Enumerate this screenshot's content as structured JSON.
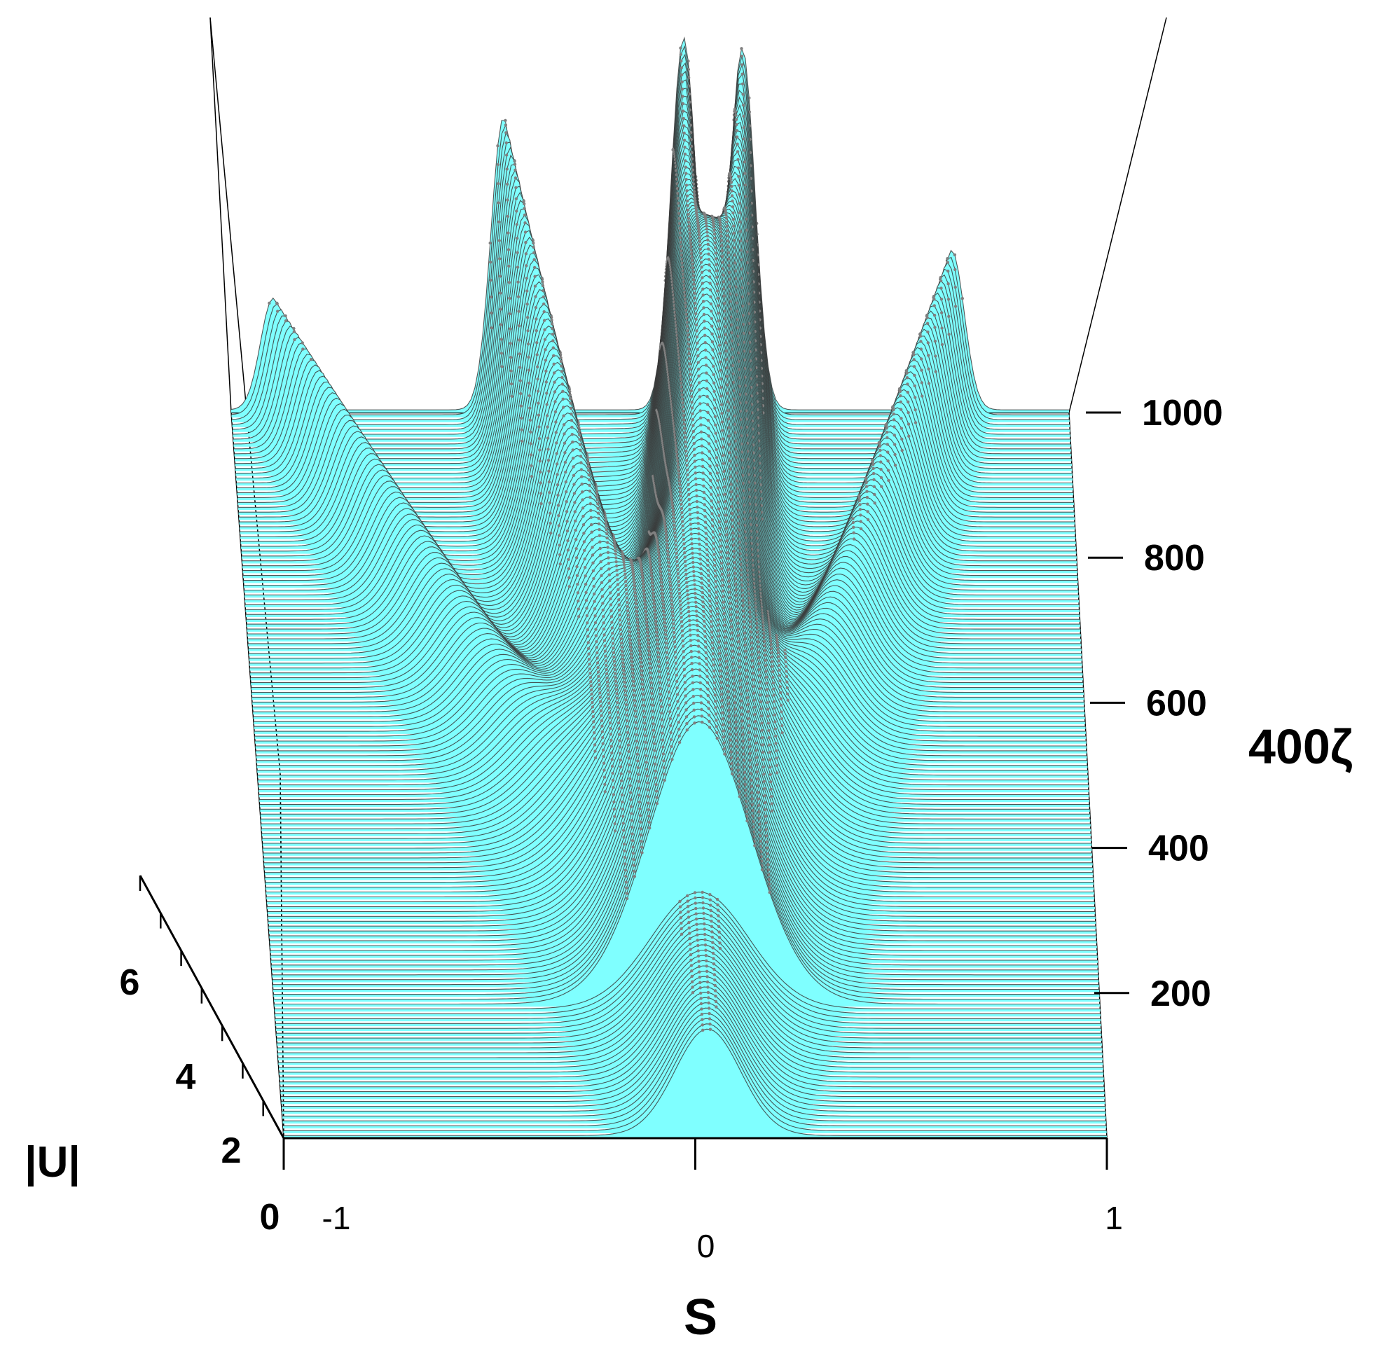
{
  "chart_data": {
    "type": "3d-waterfall",
    "xlabel": "S",
    "ylabel": "400ζ",
    "zlabel": "|U|",
    "x_ticks": [
      "-1",
      "0",
      "1"
    ],
    "y_ticks": [
      "200",
      "400",
      "600",
      "800",
      "1000"
    ],
    "z_ticks": [
      "0",
      "2",
      "4",
      "6"
    ],
    "xlim": [
      -1,
      1
    ],
    "ylim": [
      0,
      1000
    ],
    "zlim": [
      0,
      7
    ],
    "fill_color": "#7fffff",
    "ridge_color": "#808080",
    "evolution": {
      "initial_peak": {
        "s": 0.03,
        "amplitude": 2.0,
        "width": 0.08,
        "y": 0
      },
      "split_at_y": 180,
      "beams": [
        {
          "name": "outer-left",
          "s_at_1000": -0.9,
          "peak_amplitude": 2.1
        },
        {
          "name": "inner-left",
          "s_at_1000": -0.35,
          "peak_amplitude": 5.5
        },
        {
          "name": "center-left",
          "s_at_1000": 0.08,
          "peak_amplitude": 7.0
        },
        {
          "name": "center-right",
          "s_at_1000": 0.22,
          "peak_amplitude": 6.8
        },
        {
          "name": "outer-right",
          "s_at_1000": 0.72,
          "peak_amplitude": 3.0
        }
      ]
    }
  }
}
